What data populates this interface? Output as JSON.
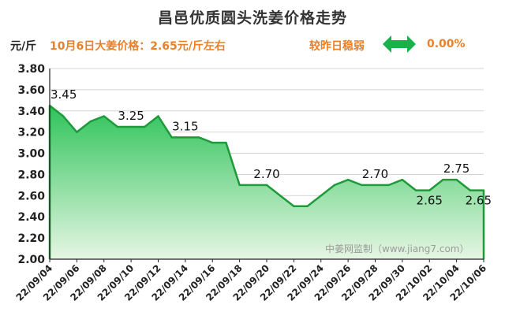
{
  "header": {
    "title": "昌邑优质圆头洗姜价格走势",
    "unit": "元/斤",
    "price_note": "10月6日大姜价格：2.65元/斤左右",
    "compare_text": "较昨日稳弱",
    "change_value": "0.00%",
    "arrow_icon": "double-arrow-horizontal",
    "arrow_color": "#18b24b",
    "accent_color": "#e8812a"
  },
  "watermark": "中姜网监制（www.jiang7.com）",
  "chart_data": {
    "type": "area",
    "title": "昌邑优质圆头洗姜价格走势",
    "ylabel": "元/斤",
    "xlabel": "",
    "ylim": [
      2.0,
      3.8
    ],
    "yticks": [
      "2.00",
      "2.20",
      "2.40",
      "2.60",
      "2.80",
      "3.00",
      "3.20",
      "3.40",
      "3.60",
      "3.80"
    ],
    "grid": true,
    "line_color": "#1e9a3a",
    "fill_top_color": "#2fc35a",
    "fill_bottom_color": "#e6f6e3",
    "x": [
      "22/09/04",
      "22/09/05",
      "22/09/06",
      "22/09/07",
      "22/09/08",
      "22/09/09",
      "22/09/10",
      "22/09/11",
      "22/09/12",
      "22/09/13",
      "22/09/14",
      "22/09/15",
      "22/09/16",
      "22/09/17",
      "22/09/18",
      "22/09/19",
      "22/09/20",
      "22/09/21",
      "22/09/22",
      "22/09/23",
      "22/09/24",
      "22/09/25",
      "22/09/26",
      "22/09/27",
      "22/09/28",
      "22/09/29",
      "22/09/30",
      "22/10/01",
      "22/10/02",
      "22/10/03",
      "22/10/04",
      "22/10/05",
      "22/10/06"
    ],
    "x_tick_labels": [
      "22/09/04",
      "22/09/06",
      "22/09/08",
      "22/09/10",
      "22/09/12",
      "22/09/14",
      "22/09/16",
      "22/09/18",
      "22/09/20",
      "22/09/22",
      "22/09/24",
      "22/09/26",
      "22/09/28",
      "22/09/30",
      "22/10/02",
      "22/10/04",
      "22/10/06"
    ],
    "y": [
      3.45,
      3.35,
      3.2,
      3.3,
      3.35,
      3.25,
      3.25,
      3.25,
      3.35,
      3.15,
      3.15,
      3.15,
      3.1,
      3.1,
      2.7,
      2.7,
      2.7,
      2.6,
      2.5,
      2.5,
      2.6,
      2.7,
      2.75,
      2.7,
      2.7,
      2.7,
      2.75,
      2.65,
      2.65,
      2.75,
      2.75,
      2.65,
      2.65
    ],
    "data_labels": [
      {
        "x": "22/09/04",
        "text": "3.45"
      },
      {
        "x": "22/09/10",
        "text": "3.25"
      },
      {
        "x": "22/09/14",
        "text": "3.15"
      },
      {
        "x": "22/09/20",
        "text": "2.70"
      },
      {
        "x": "22/09/28",
        "text": "2.70"
      },
      {
        "x": "22/10/02",
        "text": "2.65"
      },
      {
        "x": "22/10/04",
        "text": "2.75"
      },
      {
        "x": "22/10/06",
        "text": "2.65"
      }
    ]
  }
}
